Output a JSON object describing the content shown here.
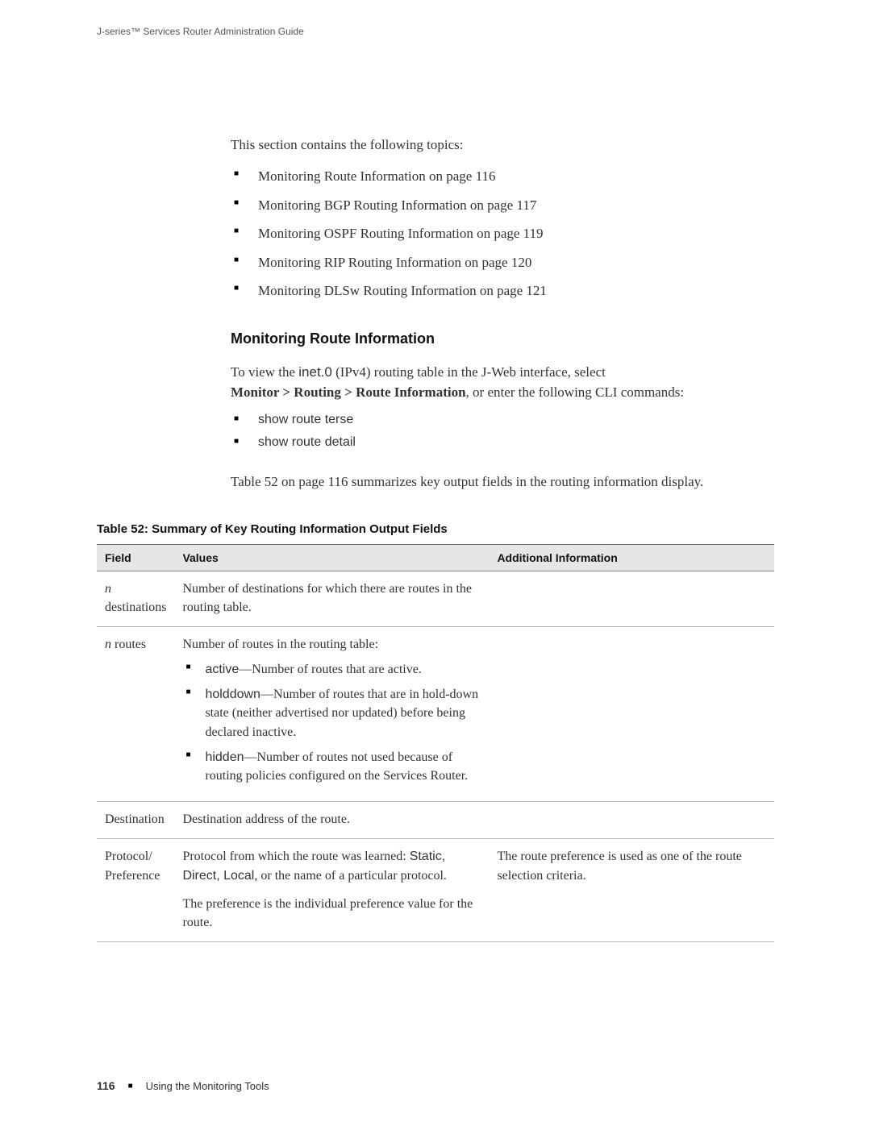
{
  "header": {
    "running_title": "J-series™ Services Router Administration Guide"
  },
  "intro": "This section contains the following topics:",
  "topics": [
    "Monitoring Route Information on page 116",
    "Monitoring BGP Routing Information on page 117",
    "Monitoring OSPF Routing Information on page 119",
    "Monitoring RIP Routing Information on page 120",
    "Monitoring DLSw Routing Information on page 121"
  ],
  "section": {
    "heading": "Monitoring Route Information",
    "para1_pre": "To view the ",
    "para1_code": "inet.0",
    "para1_mid": " (IPv4) routing table in the J-Web interface, select ",
    "para1_bold": "Monitor > Routing > Route Information",
    "para1_post": ", or enter the following CLI commands:",
    "cli": [
      "show route terse",
      "show route detail"
    ],
    "table_ref": "Table 52 on page 116 summarizes key output fields in the routing information display."
  },
  "table": {
    "caption": "Table 52: Summary of Key Routing Information Output Fields",
    "columns": [
      "Field",
      "Values",
      "Additional Information"
    ],
    "rows": [
      {
        "field_italic": "n",
        "field_rest": " destinations",
        "values_intro": "Number of destinations for which there are routes in the routing table.",
        "bullets": [],
        "addl": ""
      },
      {
        "field_italic": "n",
        "field_rest": " routes",
        "values_intro": "Number of routes in the routing table:",
        "bullets": [
          {
            "term": "active",
            "desc": "—Number of routes that are active."
          },
          {
            "term": "holddown",
            "desc": "—Number of routes that are in hold-down state (neither advertised nor updated) before being declared inactive."
          },
          {
            "term": "hidden",
            "desc": "—Number of routes not used because of routing policies configured on the Services Router."
          }
        ],
        "addl": ""
      },
      {
        "field_plain": "Destination",
        "values_intro": "Destination address of the route.",
        "bullets": [],
        "addl": ""
      },
      {
        "field_plain": "Protocol/ Preference",
        "values_intro_pre": "Protocol from which the route was learned: ",
        "values_intro_terms": "Static, Direct, Local",
        "values_intro_post": ", or the name of a particular protocol.",
        "values_second_para": "The preference is the individual preference value for the route.",
        "bullets": [],
        "addl": "The route preference is used as one of the route selection criteria."
      }
    ]
  },
  "footer": {
    "page_number": "116",
    "section_name": "Using the Monitoring Tools"
  }
}
